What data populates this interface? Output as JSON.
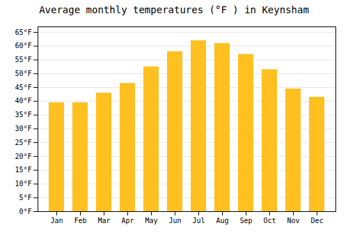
{
  "chart_data": {
    "type": "bar",
    "title": "Average monthly temperatures (°F ) in Keynsham",
    "categories": [
      "Jan",
      "Feb",
      "Mar",
      "Apr",
      "May",
      "Jun",
      "Jul",
      "Aug",
      "Sep",
      "Oct",
      "Nov",
      "Dec"
    ],
    "values": [
      39.5,
      39.5,
      43.0,
      46.5,
      52.5,
      58.0,
      62.0,
      61.0,
      57.0,
      51.5,
      44.5,
      41.5
    ],
    "color": "#FFC020",
    "ylim": [
      0,
      67
    ],
    "yticks": [
      {
        "value": 0,
        "label": "0°F"
      },
      {
        "value": 5,
        "label": "5°F"
      },
      {
        "value": 10,
        "label": "10°F"
      },
      {
        "value": 15,
        "label": "15°F"
      },
      {
        "value": 20,
        "label": "20°F"
      },
      {
        "value": 25,
        "label": "25°F"
      },
      {
        "value": 30,
        "label": "30°F"
      },
      {
        "value": 35,
        "label": "35°F"
      },
      {
        "value": 40,
        "label": "40°F"
      },
      {
        "value": 45,
        "label": "45°F"
      },
      {
        "value": 50,
        "label": "50°F"
      },
      {
        "value": 55,
        "label": "55°F"
      },
      {
        "value": 60,
        "label": "60°F"
      },
      {
        "value": 65,
        "label": "65°F"
      }
    ],
    "grid": true
  }
}
